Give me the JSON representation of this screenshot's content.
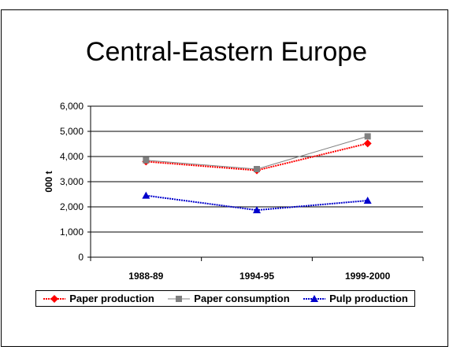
{
  "chart_data": {
    "type": "line",
    "title": "Central-Eastern Europe",
    "ylabel": "000 t",
    "xlabel": "",
    "categories": [
      "1988-89",
      "1994-95",
      "1999-2000"
    ],
    "ylim": [
      0,
      6000
    ],
    "yticks": [
      "0",
      "1,000",
      "2,000",
      "3,000",
      "4,000",
      "5,000",
      "6,000"
    ],
    "ytick_values": [
      0,
      1000,
      2000,
      3000,
      4000,
      5000,
      6000
    ],
    "grid": "horizontal",
    "legend_position": "bottom",
    "series": [
      {
        "name": "Paper production",
        "values": [
          3800,
          3450,
          4520
        ],
        "color": "#ff0000",
        "marker": "diamond",
        "style": "dotted"
      },
      {
        "name": "Paper consumption",
        "values": [
          3850,
          3500,
          4800
        ],
        "color": "#808080",
        "marker": "square",
        "style": "solid"
      },
      {
        "name": "Pulp production",
        "values": [
          2450,
          1870,
          2250
        ],
        "color": "#0000cc",
        "marker": "triangle",
        "style": "dotted"
      }
    ]
  }
}
